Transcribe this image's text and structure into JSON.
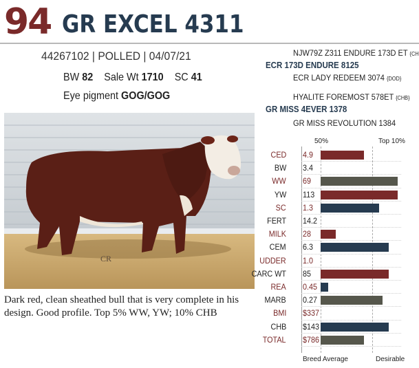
{
  "lot": "94",
  "name": "GR EXCEL 4311",
  "id_line": "44267102 | POLLED | 04/07/21",
  "stats": {
    "bw_label": "BW",
    "bw": "82",
    "sale_wt_label": "Sale Wt",
    "sale_wt": "1710",
    "sc_label": "SC",
    "sc": "41",
    "eye_label": "Eye pigment",
    "eye": "GOG/GOG"
  },
  "pedigree": [
    {
      "text": "NJW79Z Z311 ENDURE 173D ET",
      "tag": "{CHB}",
      "type": "ancestor"
    },
    {
      "text": "ECR 173D ENDURE 8125",
      "tag": "",
      "type": "sire"
    },
    {
      "text": "ECR LADY REDEEM 3074",
      "tag": "{DOD}",
      "type": "ancestor"
    },
    {
      "text": "HYALITE FOREMOST 578ET",
      "tag": "{CHB}",
      "type": "ancestor"
    },
    {
      "text": "GR MISS 4EVER 1378",
      "tag": "",
      "type": "sire"
    },
    {
      "text": "GR MISS REVOLUTION 1384",
      "tag": "",
      "type": "ancestor"
    }
  ],
  "photo_mark": "CR",
  "caption": "Dark red, clean sheathed bull that is very complete in his design. Good profile. Top 5% WW, YW; 10% CHB",
  "epd_header": {
    "left": "50%",
    "right": "Top 10%"
  },
  "epd_footer": {
    "left": "Breed Average",
    "right": "Desirable"
  },
  "colors": {
    "red": "#7a2a2a",
    "navy": "#263b50",
    "olive": "#56574c"
  },
  "epds": [
    {
      "label": "CED",
      "value": "4.9",
      "fill": 0.56,
      "color": "red"
    },
    {
      "label": "BW",
      "value": "3.4",
      "fill": 0,
      "color": "none"
    },
    {
      "label": "WW",
      "value": "69",
      "fill": 1.0,
      "color": "olive"
    },
    {
      "label": "YW",
      "value": "113",
      "fill": 1.0,
      "color": "red"
    },
    {
      "label": "SC",
      "value": "1.3",
      "fill": 0.76,
      "color": "navy"
    },
    {
      "label": "FERT",
      "value": "14.2",
      "fill": 0,
      "color": "none"
    },
    {
      "label": "MILK",
      "value": "28",
      "fill": 0.2,
      "color": "red"
    },
    {
      "label": "CEM",
      "value": "6.3",
      "fill": 0.88,
      "color": "navy"
    },
    {
      "label": "UDDER",
      "value": "1.0",
      "fill": 0,
      "color": "none"
    },
    {
      "label": "CARC WT",
      "value": "85",
      "fill": 0.88,
      "color": "red"
    },
    {
      "label": "REA",
      "value": "0.45",
      "fill": 0.1,
      "color": "navy"
    },
    {
      "label": "MARB",
      "value": "0.27",
      "fill": 0.8,
      "color": "olive"
    },
    {
      "label": "BMI",
      "value": "$337",
      "fill": 0,
      "color": "none"
    },
    {
      "label": "CHB",
      "value": "$143",
      "fill": 0.88,
      "color": "navy"
    },
    {
      "label": "TOTAL",
      "value": "$786",
      "fill": 0.56,
      "color": "olive"
    }
  ]
}
